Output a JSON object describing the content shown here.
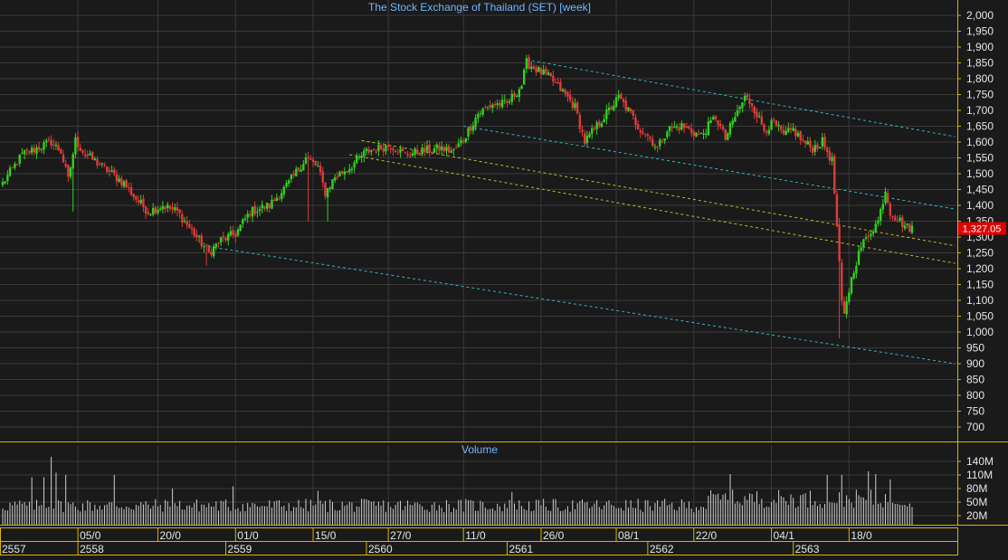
{
  "chart_data": [
    {
      "type": "candlestick",
      "title": "The Stock Exchange of Thailand (SET) [week]",
      "ylim": [
        650,
        2025
      ],
      "y_ticks": [
        "2,000",
        "1,950",
        "1,900",
        "1,850",
        "1,800",
        "1,750",
        "1,700",
        "1,650",
        "1,600",
        "1,550",
        "1,500",
        "1,450",
        "1,400",
        "1,350",
        "1,300",
        "1,250",
        "1,200",
        "1,150",
        "1,100",
        "1,050",
        "1,000",
        "950",
        "900",
        "850",
        "800",
        "750",
        "700"
      ],
      "y_tick_values": [
        2000,
        1950,
        1900,
        1850,
        1800,
        1750,
        1700,
        1650,
        1600,
        1550,
        1500,
        1450,
        1400,
        1350,
        1300,
        1250,
        1200,
        1150,
        1100,
        1050,
        1000,
        950,
        900,
        850,
        800,
        750,
        700
      ],
      "last_price_label": "1,327.05",
      "last_price": 1327.05,
      "grid": true,
      "bars_per_period": 300,
      "path_anchors": [
        [
          0,
          1470
        ],
        [
          8,
          1560
        ],
        [
          20,
          1600
        ],
        [
          24,
          1570
        ],
        [
          27,
          1480
        ],
        [
          30,
          1605
        ],
        [
          34,
          1560
        ],
        [
          38,
          1540
        ],
        [
          45,
          1500
        ],
        [
          50,
          1470
        ],
        [
          55,
          1420
        ],
        [
          60,
          1380
        ],
        [
          66,
          1400
        ],
        [
          72,
          1380
        ],
        [
          80,
          1300
        ],
        [
          85,
          1250
        ],
        [
          90,
          1290
        ],
        [
          96,
          1310
        ],
        [
          102,
          1380
        ],
        [
          110,
          1400
        ],
        [
          118,
          1470
        ],
        [
          125,
          1550
        ],
        [
          130,
          1520
        ],
        [
          133,
          1440
        ],
        [
          137,
          1490
        ],
        [
          143,
          1520
        ],
        [
          150,
          1570
        ],
        [
          155,
          1580
        ],
        [
          160,
          1590
        ],
        [
          166,
          1560
        ],
        [
          172,
          1570
        ],
        [
          180,
          1580
        ],
        [
          186,
          1570
        ],
        [
          190,
          1610
        ],
        [
          196,
          1690
        ],
        [
          202,
          1720
        ],
        [
          208,
          1720
        ],
        [
          214,
          1780
        ],
        [
          216,
          1850
        ],
        [
          220,
          1830
        ],
        [
          226,
          1800
        ],
        [
          232,
          1750
        ],
        [
          236,
          1710
        ],
        [
          240,
          1600
        ],
        [
          245,
          1650
        ],
        [
          250,
          1700
        ],
        [
          254,
          1740
        ],
        [
          258,
          1700
        ],
        [
          262,
          1650
        ],
        [
          266,
          1620
        ],
        [
          270,
          1580
        ],
        [
          274,
          1640
        ],
        [
          280,
          1650
        ],
        [
          288,
          1620
        ],
        [
          294,
          1680
        ],
        [
          298,
          1610
        ],
        [
          302,
          1680
        ],
        [
          306,
          1740
        ],
        [
          309,
          1720
        ],
        [
          314,
          1640
        ],
        [
          318,
          1660
        ],
        [
          322,
          1620
        ],
        [
          326,
          1640
        ],
        [
          330,
          1600
        ],
        [
          334,
          1580
        ],
        [
          338,
          1600
        ],
        [
          342,
          1540
        ],
        [
          343,
          1440
        ],
        [
          344,
          1330
        ],
        [
          346,
          1090
        ],
        [
          347,
          1050
        ],
        [
          348,
          1100
        ],
        [
          351,
          1200
        ],
        [
          354,
          1270
        ],
        [
          358,
          1320
        ],
        [
          361,
          1350
        ],
        [
          364,
          1450
        ],
        [
          366,
          1380
        ],
        [
          370,
          1350
        ],
        [
          373,
          1330
        ]
      ],
      "notable_wicks": [
        {
          "i": 29,
          "low": 1380
        },
        {
          "i": 134,
          "low": 1350
        },
        {
          "i": 126,
          "low": 1350
        },
        {
          "i": 84,
          "low": 1210
        },
        {
          "i": 345,
          "low": 980,
          "high": 1360
        },
        {
          "i": 365,
          "high": 1450
        }
      ],
      "trendlines": [
        {
          "color": "#2fb4c8",
          "points": [
            [
              216,
              1860
            ],
            [
              376,
              1640
            ]
          ]
        },
        {
          "color": "#2fb4c8",
          "points": [
            [
              190,
              1650
            ],
            [
              376,
              1410
            ]
          ]
        },
        {
          "color": "#2fb4c8",
          "points": [
            [
              85,
              1270
            ],
            [
              376,
              920
            ]
          ]
        },
        {
          "color": "#c8b428",
          "points": [
            [
              148,
              1605
            ],
            [
              376,
              1295
            ]
          ]
        },
        {
          "color": "#c8b428",
          "points": [
            [
              143,
              1560
            ],
            [
              376,
              1240
            ]
          ]
        }
      ]
    },
    {
      "type": "bar",
      "title": "Volume",
      "ylim": [
        0,
        160
      ],
      "y_ticks": [
        "140M",
        "110M",
        "80M",
        "50M",
        "20M"
      ],
      "y_tick_values": [
        140,
        110,
        80,
        50,
        20
      ],
      "bar_count": 376,
      "base_volume": 50,
      "spikes": [
        {
          "i": 20,
          "v": 150
        },
        {
          "i": 22,
          "v": 115
        },
        {
          "i": 26,
          "v": 110
        },
        {
          "i": 17,
          "v": 105
        },
        {
          "i": 12,
          "v": 105
        },
        {
          "i": 46,
          "v": 110
        },
        {
          "i": 70,
          "v": 80
        },
        {
          "i": 95,
          "v": 85
        },
        {
          "i": 130,
          "v": 75
        },
        {
          "i": 210,
          "v": 72
        },
        {
          "i": 300,
          "v": 112
        },
        {
          "i": 340,
          "v": 110
        },
        {
          "i": 346,
          "v": 110
        },
        {
          "i": 357,
          "v": 118
        },
        {
          "i": 360,
          "v": 112
        },
        {
          "i": 366,
          "v": 100
        }
      ]
    }
  ],
  "x_axis": {
    "date_labels": [
      "05/0",
      "20/0",
      "01/0",
      "15/0",
      "27/0",
      "11/0",
      "26/0",
      "08/1",
      "22/0",
      "04/1",
      "18/0"
    ],
    "date_label_bars": [
      31,
      64,
      96,
      128,
      159,
      190,
      222,
      253,
      285,
      317,
      349
    ],
    "year_labels": [
      "2557",
      "2558",
      "2559",
      "2560",
      "2561",
      "2562",
      "2563"
    ],
    "year_label_bars": [
      0,
      31,
      92,
      150,
      208,
      266,
      326
    ]
  },
  "colors": {
    "background": "#1a1a1a",
    "grid": "#3a3a3a",
    "frame": "#d7b400",
    "axis_text": "#e6e6e6",
    "title": "#6fb7ff",
    "up": "#33d11f",
    "down": "#e03b3b",
    "price_tag": "#e00000",
    "volume_bar": "#cfcfcf"
  }
}
